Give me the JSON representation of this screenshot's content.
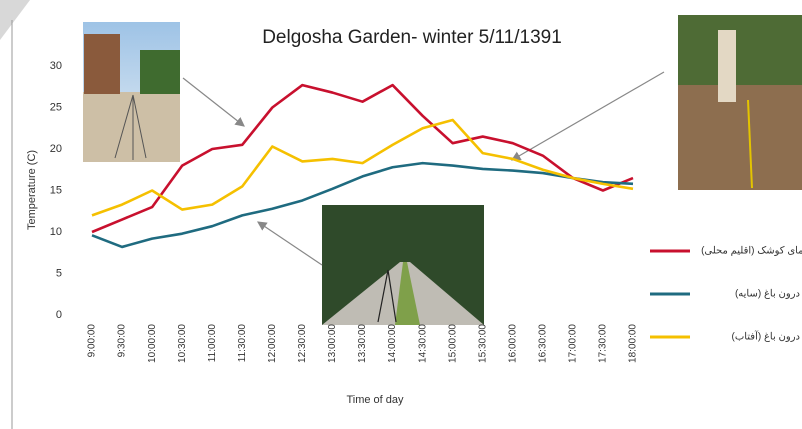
{
  "chart_data": {
    "type": "line",
    "title": "Delgosha Garden- winter 5/11/1391",
    "x_label": "Time of day",
    "y_label": "Temperature (C)",
    "categories": [
      "9:00:00",
      "9:30:00",
      "10:00:00",
      "10:30:00",
      "11:00:00",
      "11:30:00",
      "12:00:00",
      "12:30:00",
      "13:00:00",
      "13:30:00",
      "14:00:00",
      "14:30:00",
      "15:00:00",
      "15:30:00",
      "16:00:00",
      "16:30:00",
      "17:00:00",
      "17:30:00",
      "18:00:00"
    ],
    "series": [
      {
        "name": "دمای کوشک (اقلیم محلی)",
        "color": "#c8102e",
        "values": [
          10,
          11.5,
          13,
          18,
          20,
          20.5,
          25,
          27.7,
          26.8,
          25.7,
          27.7,
          24,
          20.7,
          21.5,
          20.7,
          19.2,
          16.5,
          15,
          16.5
        ]
      },
      {
        "name": "درون باغ (سایه)",
        "color": "#1f6b80",
        "values": [
          9.6,
          8.2,
          9.2,
          9.8,
          10.7,
          12,
          12.8,
          13.8,
          15.2,
          16.7,
          17.8,
          18.3,
          18,
          17.6,
          17.4,
          17.1,
          16.5,
          16,
          15.8
        ]
      },
      {
        "name": "درون باغ (آفتاب)",
        "color": "#f5c000",
        "values": [
          12,
          13.3,
          15,
          12.7,
          13.3,
          15.5,
          20.3,
          18.5,
          18.8,
          18.3,
          20.5,
          22.5,
          23.5,
          19.5,
          18.8,
          17.5,
          16.5,
          15.8,
          15.2
        ]
      }
    ],
    "ylim": [
      0,
      30
    ],
    "yticks": [
      0,
      5,
      10,
      15,
      20,
      25,
      30
    ],
    "grid": false
  }
}
